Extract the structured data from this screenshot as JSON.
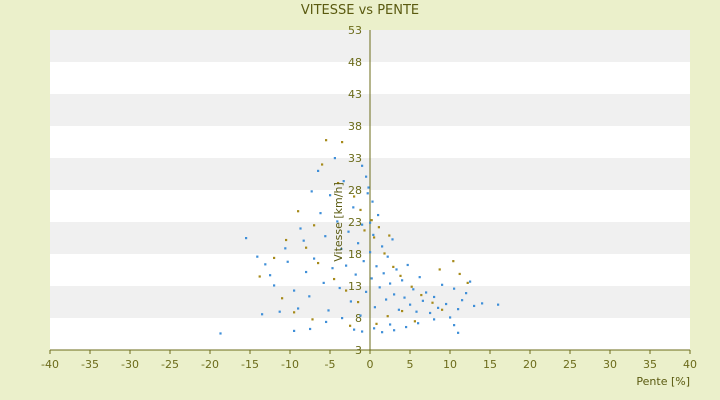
{
  "chart_data": {
    "type": "scatter",
    "title": "VITESSE vs PENTE",
    "xlabel": "Pente [%]",
    "ylabel": "Vitesse [km/h]",
    "xlim": [
      -40,
      40
    ],
    "ylim": [
      3,
      53
    ],
    "xticks": [
      -40,
      -35,
      -30,
      -25,
      -20,
      -15,
      -10,
      -5,
      0,
      5,
      10,
      15,
      20,
      25,
      30,
      35,
      40
    ],
    "yticks": [
      3,
      8,
      13,
      18,
      23,
      28,
      33,
      38,
      43,
      48,
      53
    ],
    "grid": "horizontal bands",
    "legend": "none",
    "colors": {
      "background": "#ebf0cb",
      "plot_band_light": "#ffffff",
      "plot_band_dark": "#f0f0f0",
      "axis": "#6b6b1a",
      "series_primary": "#3f8fd8",
      "series_secondary": "#a68a1a"
    },
    "series": [
      {
        "points": [
          [
            -18.7,
            5.6
          ],
          [
            -15.5,
            20.5
          ],
          [
            -14.1,
            17.6
          ],
          [
            -13.5,
            8.6
          ],
          [
            -13.1,
            16.4
          ],
          [
            -12.5,
            14.7
          ],
          [
            -12.0,
            13.1
          ],
          [
            -11.3,
            9.0
          ],
          [
            -10.6,
            18.9
          ],
          [
            -10.3,
            16.8
          ],
          [
            -9.5,
            12.3
          ],
          [
            -9.0,
            9.5
          ],
          [
            -8.7,
            22.0
          ],
          [
            -8.3,
            20.1
          ],
          [
            -8.0,
            15.2
          ],
          [
            -7.6,
            11.4
          ],
          [
            -7.3,
            27.8
          ],
          [
            -7.0,
            17.3
          ],
          [
            -6.5,
            31.0
          ],
          [
            -6.2,
            24.4
          ],
          [
            -5.8,
            13.5
          ],
          [
            -5.6,
            20.8
          ],
          [
            -5.2,
            9.2
          ],
          [
            -5.0,
            27.2
          ],
          [
            -4.7,
            15.8
          ],
          [
            -4.4,
            33.0
          ],
          [
            -4.1,
            23.1
          ],
          [
            -3.8,
            12.7
          ],
          [
            -3.6,
            18.8
          ],
          [
            -3.3,
            29.4
          ],
          [
            -3.0,
            16.2
          ],
          [
            -2.7,
            21.5
          ],
          [
            -2.4,
            10.6
          ],
          [
            -2.1,
            25.3
          ],
          [
            -1.8,
            14.8
          ],
          [
            -1.5,
            19.7
          ],
          [
            -1.2,
            8.4
          ],
          [
            -1.0,
            22.6
          ],
          [
            -0.8,
            16.9
          ],
          [
            -0.5,
            12.1
          ],
          [
            -0.3,
            27.5
          ],
          [
            0.0,
            18.3
          ],
          [
            0.2,
            14.2
          ],
          [
            0.4,
            21.0
          ],
          [
            0.6,
            9.7
          ],
          [
            0.8,
            16.1
          ],
          [
            1.0,
            24.1
          ],
          [
            1.2,
            12.8
          ],
          [
            1.5,
            19.2
          ],
          [
            1.7,
            15.0
          ],
          [
            2.0,
            10.9
          ],
          [
            2.2,
            17.6
          ],
          [
            2.5,
            13.4
          ],
          [
            2.8,
            20.3
          ],
          [
            3.0,
            11.7
          ],
          [
            3.3,
            15.6
          ],
          [
            3.6,
            9.3
          ],
          [
            4.0,
            13.9
          ],
          [
            4.3,
            11.2
          ],
          [
            4.7,
            16.3
          ],
          [
            5.0,
            10.1
          ],
          [
            5.4,
            12.5
          ],
          [
            5.8,
            9.0
          ],
          [
            6.2,
            14.4
          ],
          [
            6.6,
            10.7
          ],
          [
            7.0,
            12.0
          ],
          [
            7.5,
            8.8
          ],
          [
            8.0,
            11.3
          ],
          [
            8.5,
            9.6
          ],
          [
            9.0,
            13.2
          ],
          [
            9.5,
            10.2
          ],
          [
            10.0,
            8.1
          ],
          [
            10.5,
            12.6
          ],
          [
            11.0,
            9.4
          ],
          [
            11.5,
            10.8
          ],
          [
            12.0,
            11.9
          ],
          [
            12.5,
            13.7
          ],
          [
            13.0,
            9.9
          ],
          [
            14.0,
            10.3
          ],
          [
            16.0,
            10.1
          ],
          [
            -2.0,
            6.2
          ],
          [
            -1.0,
            5.9
          ],
          [
            0.5,
            6.4
          ],
          [
            1.5,
            5.8
          ],
          [
            3.0,
            6.1
          ],
          [
            4.5,
            6.6
          ],
          [
            6.0,
            7.2
          ],
          [
            -5.5,
            7.4
          ],
          [
            -7.5,
            6.3
          ],
          [
            -9.5,
            6.0
          ],
          [
            10.5,
            6.9
          ],
          [
            11.0,
            5.7
          ],
          [
            8.0,
            7.8
          ],
          [
            2.5,
            7.0
          ],
          [
            -3.5,
            8.0
          ],
          [
            0.0,
            22.9
          ],
          [
            -0.5,
            30.1
          ],
          [
            -1.0,
            31.8
          ],
          [
            0.3,
            26.2
          ],
          [
            -0.2,
            28.4
          ]
        ]
      },
      {
        "points": [
          [
            -5.5,
            35.8
          ],
          [
            -3.5,
            35.5
          ],
          [
            -6.0,
            32.0
          ],
          [
            -4.0,
            29.1
          ],
          [
            -2.0,
            27.0
          ],
          [
            -9.0,
            24.7
          ],
          [
            -7.0,
            22.5
          ],
          [
            -10.5,
            20.2
          ],
          [
            -8.0,
            19.0
          ],
          [
            -6.5,
            16.6
          ],
          [
            -4.5,
            14.1
          ],
          [
            -3.0,
            12.3
          ],
          [
            -1.5,
            10.5
          ],
          [
            0.5,
            20.6
          ],
          [
            1.8,
            18.1
          ],
          [
            2.9,
            16.0
          ],
          [
            3.8,
            14.6
          ],
          [
            5.2,
            12.9
          ],
          [
            6.4,
            11.6
          ],
          [
            7.8,
            10.4
          ],
          [
            9.0,
            9.3
          ],
          [
            10.4,
            16.9
          ],
          [
            11.2,
            14.9
          ],
          [
            12.2,
            13.5
          ],
          [
            8.7,
            15.6
          ],
          [
            -12.0,
            17.4
          ],
          [
            -13.8,
            14.5
          ],
          [
            -11.0,
            11.1
          ],
          [
            -9.5,
            8.9
          ],
          [
            -7.2,
            7.8
          ],
          [
            -2.5,
            6.8
          ],
          [
            0.8,
            7.1
          ],
          [
            2.2,
            8.3
          ],
          [
            4.0,
            9.1
          ],
          [
            5.6,
            7.5
          ],
          [
            -1.2,
            24.9
          ],
          [
            0.2,
            23.3
          ],
          [
            -0.7,
            21.7
          ],
          [
            1.1,
            22.2
          ],
          [
            2.4,
            20.9
          ]
        ]
      }
    ]
  }
}
